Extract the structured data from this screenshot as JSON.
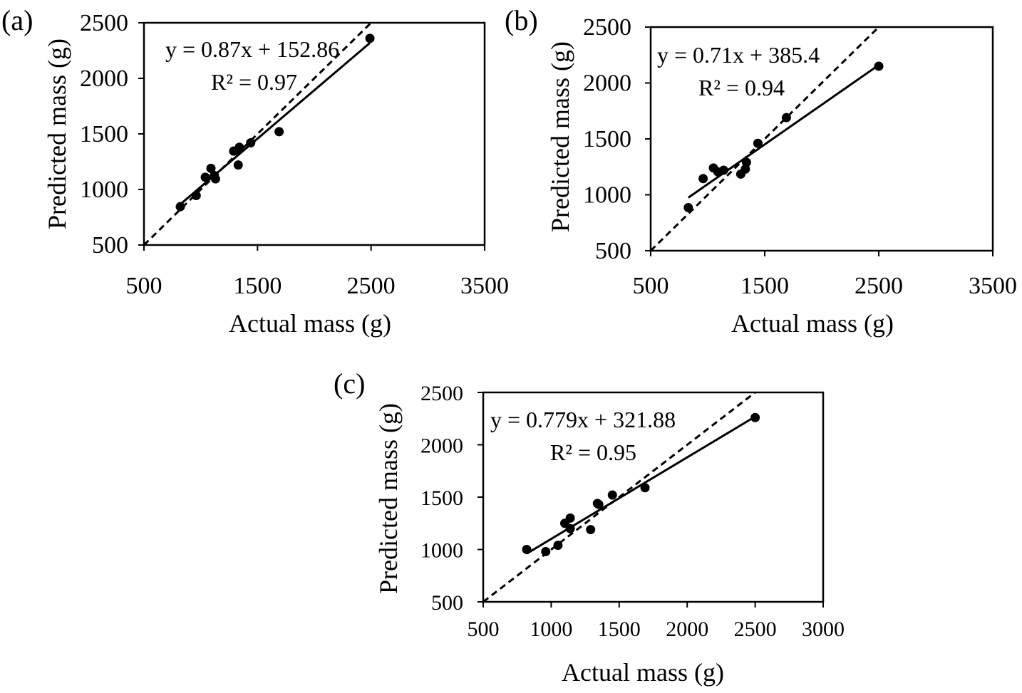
{
  "chart_data": [
    {
      "panel": "(a)",
      "type": "scatter",
      "xlabel": "Actual mass (g)",
      "ylabel": "Predicted mass (g)",
      "xlim": [
        500,
        3500
      ],
      "ylim": [
        500,
        2500
      ],
      "xticks": [
        500,
        1500,
        2500,
        3500
      ],
      "yticks": [
        500,
        1000,
        1500,
        2000,
        2500
      ],
      "points": [
        {
          "x": 820,
          "y": 845
        },
        {
          "x": 960,
          "y": 945
        },
        {
          "x": 1040,
          "y": 1110
        },
        {
          "x": 1090,
          "y": 1190
        },
        {
          "x": 1120,
          "y": 1125
        },
        {
          "x": 1130,
          "y": 1095
        },
        {
          "x": 1290,
          "y": 1345
        },
        {
          "x": 1340,
          "y": 1380
        },
        {
          "x": 1330,
          "y": 1220
        },
        {
          "x": 1440,
          "y": 1420
        },
        {
          "x": 1690,
          "y": 1520
        },
        {
          "x": 2490,
          "y": 2360
        }
      ],
      "trendline": {
        "slope": 0.87,
        "intercept": 152.86,
        "x_range": [
          820,
          2490
        ]
      },
      "reference_line": "1:1",
      "equation": "y = 0.87x + 152.86",
      "r2": "R² = 0.97"
    },
    {
      "panel": "(b)",
      "type": "scatter",
      "xlabel": "Actual mass (g)",
      "ylabel": "Predicted mass (g)",
      "xlim": [
        500,
        3500
      ],
      "ylim": [
        500,
        2500
      ],
      "xticks": [
        500,
        1500,
        2500,
        3500
      ],
      "yticks": [
        500,
        1000,
        1500,
        2000,
        2500
      ],
      "points": [
        {
          "x": 830,
          "y": 885
        },
        {
          "x": 960,
          "y": 1145
        },
        {
          "x": 1050,
          "y": 1240
        },
        {
          "x": 1090,
          "y": 1205
        },
        {
          "x": 1140,
          "y": 1220
        },
        {
          "x": 1290,
          "y": 1185
        },
        {
          "x": 1330,
          "y": 1230
        },
        {
          "x": 1340,
          "y": 1290
        },
        {
          "x": 1440,
          "y": 1460
        },
        {
          "x": 1690,
          "y": 1690
        },
        {
          "x": 2500,
          "y": 2150
        }
      ],
      "trendline": {
        "slope": 0.71,
        "intercept": 385.4,
        "x_range": [
          830,
          2500
        ]
      },
      "reference_line": "1:1",
      "equation": "y = 0.71x + 385.4",
      "r2": "R² = 0.94"
    },
    {
      "panel": "(c)",
      "type": "scatter",
      "xlabel": "Actual mass (g)",
      "ylabel": "Predicted mass (g)",
      "xlim": [
        500,
        3000
      ],
      "ylim": [
        500,
        2500
      ],
      "xticks": [
        500,
        1000,
        1500,
        2000,
        2500,
        3000
      ],
      "yticks": [
        500,
        1000,
        1500,
        2000,
        2500
      ],
      "points": [
        {
          "x": 820,
          "y": 1000
        },
        {
          "x": 960,
          "y": 980
        },
        {
          "x": 1050,
          "y": 1040
        },
        {
          "x": 1100,
          "y": 1250
        },
        {
          "x": 1140,
          "y": 1300
        },
        {
          "x": 1140,
          "y": 1200
        },
        {
          "x": 1290,
          "y": 1190
        },
        {
          "x": 1340,
          "y": 1440
        },
        {
          "x": 1350,
          "y": 1430
        },
        {
          "x": 1450,
          "y": 1520
        },
        {
          "x": 1690,
          "y": 1590
        },
        {
          "x": 2500,
          "y": 2260
        }
      ],
      "trendline": {
        "slope": 0.779,
        "intercept": 321.88,
        "x_range": [
          820,
          2500
        ]
      },
      "reference_line": "1:1",
      "equation": "y = 0.779x + 321.88",
      "r2": "R² = 0.95"
    }
  ]
}
